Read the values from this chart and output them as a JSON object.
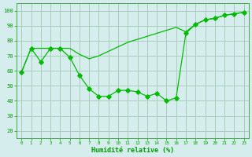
{
  "line1_x": [
    0,
    1,
    2,
    3,
    4,
    5,
    6,
    7,
    8,
    9,
    10,
    11,
    12,
    13,
    14,
    15,
    16,
    17,
    18,
    19,
    20,
    21,
    22,
    23
  ],
  "line1_y": [
    59,
    75,
    66,
    75,
    75,
    69,
    57,
    48,
    43,
    43,
    47,
    47,
    46,
    43,
    45,
    40,
    42,
    85,
    91,
    94,
    95,
    97,
    98,
    99
  ],
  "line2_x": [
    0,
    1,
    2,
    3,
    4,
    5,
    6,
    7,
    8,
    9,
    10,
    11,
    12,
    13,
    14,
    15,
    16,
    17,
    18,
    19,
    20,
    21,
    22,
    23
  ],
  "line2_y": [
    59,
    75,
    75,
    75,
    75,
    75,
    71,
    68,
    70,
    73,
    76,
    79,
    81,
    83,
    85,
    87,
    89,
    86,
    91,
    94,
    95,
    97,
    98,
    99
  ],
  "line_color": "#00bb00",
  "marker": "D",
  "markersize": 2.8,
  "xlabel": "Humidité relative (%)",
  "xlabel_color": "#009900",
  "ylabel_ticks": [
    20,
    30,
    40,
    50,
    60,
    70,
    80,
    90,
    100
  ],
  "xlim": [
    -0.5,
    23.5
  ],
  "ylim": [
    15,
    105
  ],
  "bg_color": "#d5eeed",
  "grid_color": "#aaccbb",
  "tick_color": "#009900",
  "spine_color": "#44aa44",
  "xtick_labels": [
    "0",
    "1",
    "2",
    "3",
    "4",
    "5",
    "6",
    "7",
    "8",
    "9",
    "1011",
    "1213",
    "1415",
    "1617",
    "1819",
    "2021",
    "2223"
  ]
}
